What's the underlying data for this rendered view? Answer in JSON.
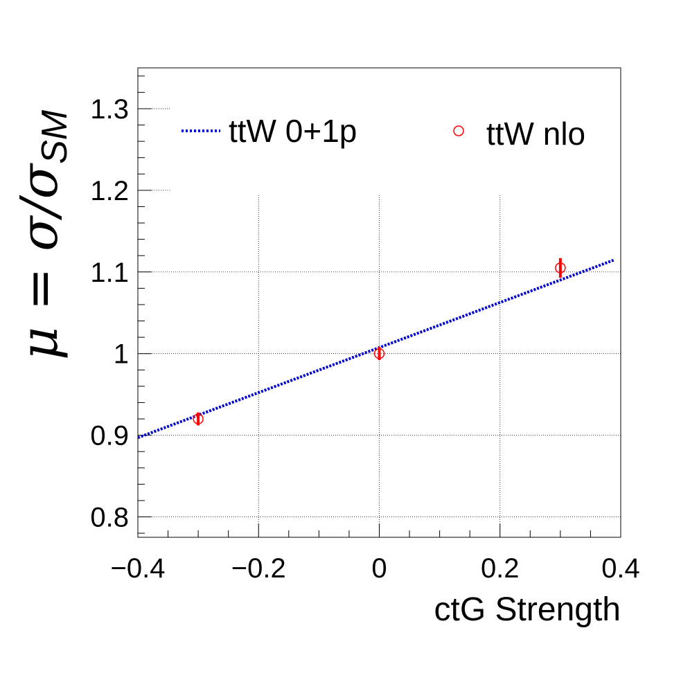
{
  "chart_data": {
    "type": "line",
    "title": "",
    "xlabel": "ctG Strength",
    "ylabel": {
      "main": "μ = σ/σ",
      "subscript": "SM"
    },
    "xlim": [
      -0.4,
      0.4
    ],
    "ylim": [
      0.775,
      1.35
    ],
    "x_ticks": [
      -0.4,
      -0.2,
      0,
      0.2,
      0.4
    ],
    "x_tick_labels": [
      "−0.4",
      "−0.2",
      "0",
      "0.2",
      "0.4"
    ],
    "y_ticks": [
      0.8,
      0.9,
      1.0,
      1.1,
      1.2,
      1.3
    ],
    "y_tick_labels": [
      "0.8",
      "0.9",
      "1",
      "1.1",
      "1.2",
      "1.3"
    ],
    "grid": true,
    "legend_position": "top",
    "series": [
      {
        "name": "ttW 0+1p",
        "kind": "line",
        "style": "dotted",
        "color": "#0000cc",
        "x": [
          -0.4,
          0.39
        ],
        "y": [
          0.897,
          1.115
        ]
      },
      {
        "name": "ttW nlo",
        "kind": "points",
        "marker": "open-circle",
        "color": "#ff0000",
        "x": [
          -0.3,
          0.0,
          0.3
        ],
        "y": [
          0.92,
          1.0,
          1.105
        ],
        "yerr": [
          0.008,
          0.008,
          0.012
        ]
      }
    ]
  }
}
